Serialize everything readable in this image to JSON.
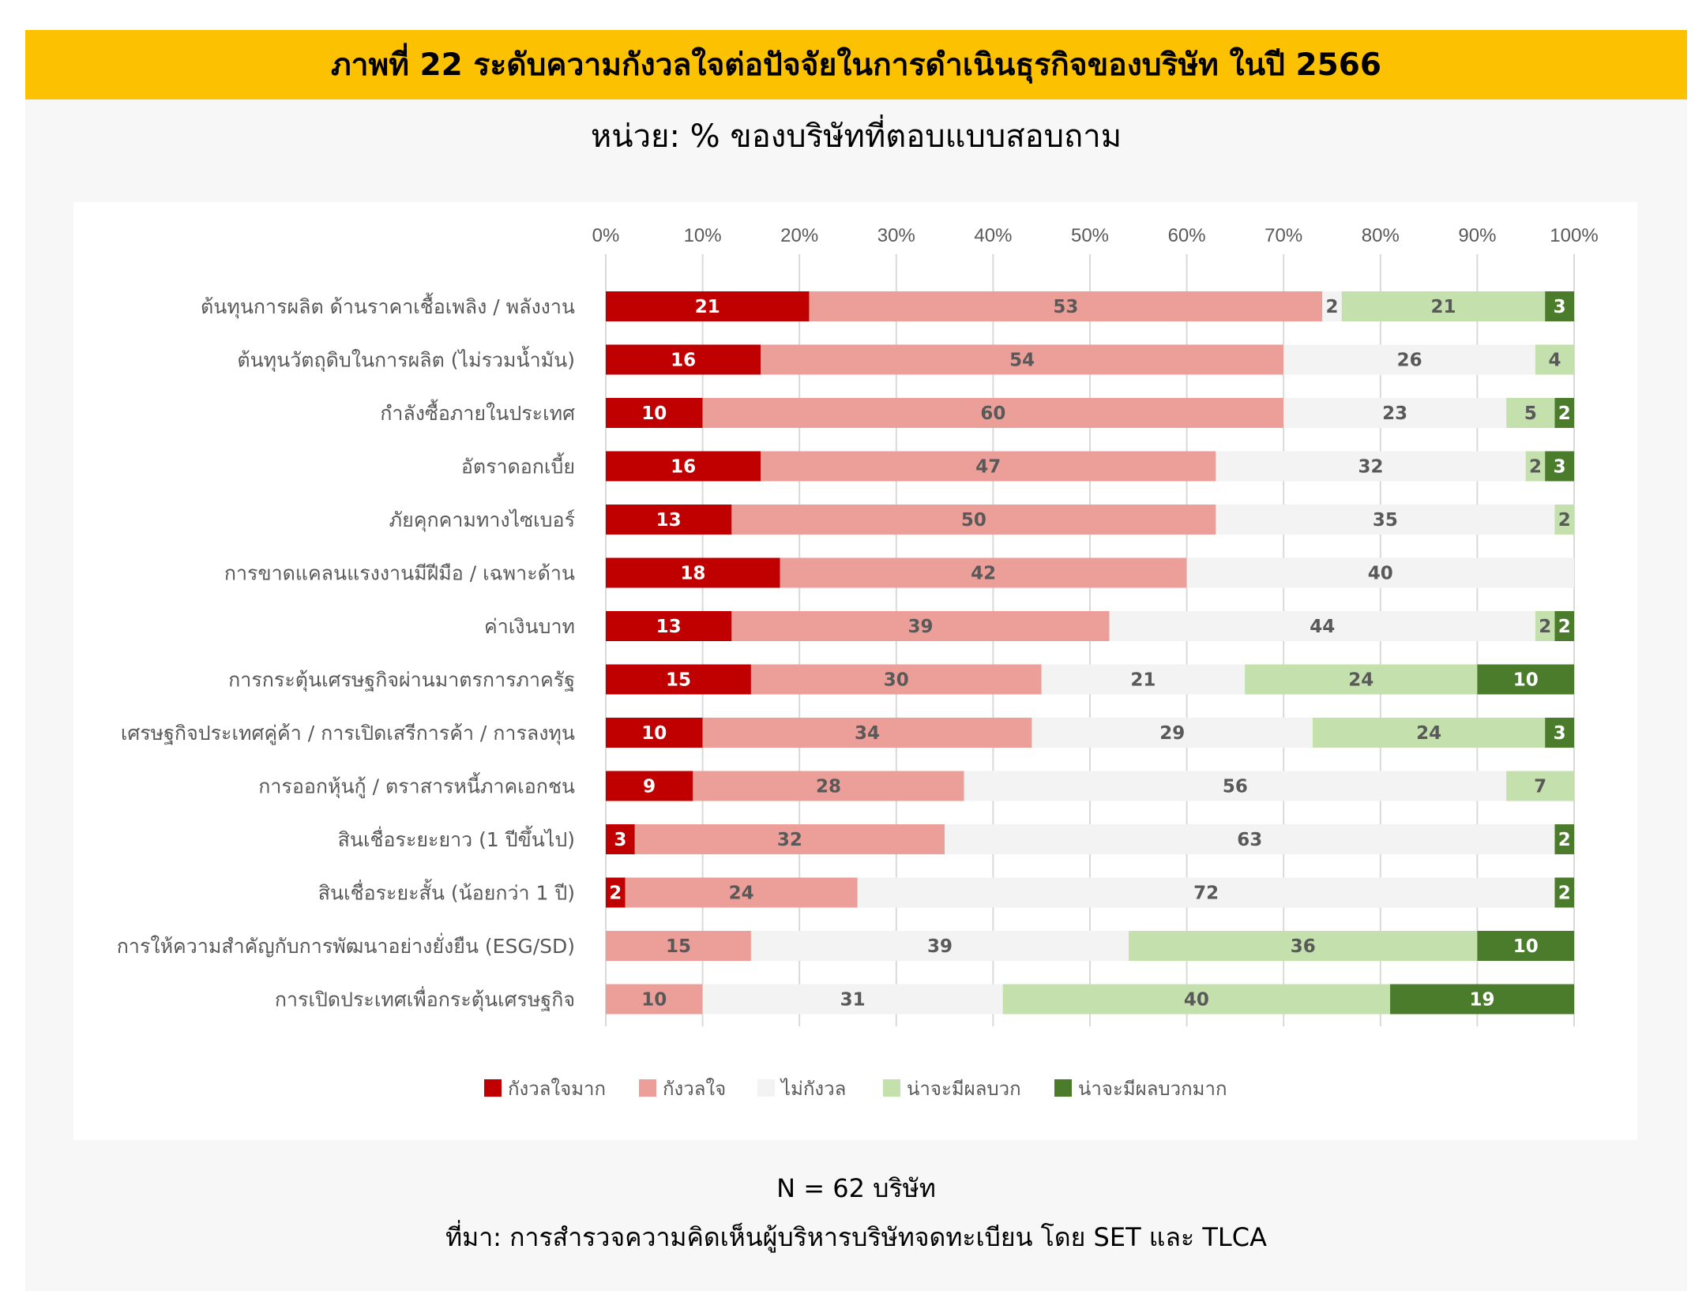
{
  "title": "ภาพที่ 22 ระดับความกังวลใจต่อปัจจัยในการดำเนินธุรกิจของบริษัท ในปี 2566",
  "subtitle": "หน่วย: % ของบริษัทที่ตอบแบบสอบถาม",
  "footer": {
    "n_label": "N = 62 บริษัท",
    "source": "ที่มา: การสำรวจความคิดเห็นผู้บริหารบริษัทจดทะเบียน โดย SET และ TLCA"
  },
  "chart_data": {
    "type": "bar",
    "orientation": "horizontal",
    "stacked": "percent",
    "xlim": [
      0,
      100
    ],
    "x_ticks": [
      "0%",
      "10%",
      "20%",
      "30%",
      "40%",
      "50%",
      "60%",
      "70%",
      "80%",
      "90%",
      "100%"
    ],
    "grid": true,
    "legend_position": "bottom",
    "categories": [
      "ต้นทุนการผลิต ด้านราคาเชื้อเพลิง / พลังงาน",
      "ต้นทุนวัตถุดิบในการผลิต (ไม่รวมน้ำมัน)",
      "กำลังซื้อภายในประเทศ",
      "อัตราดอกเบี้ย",
      "ภัยคุกคามทางไซเบอร์",
      "การขาดแคลนแรงงานมีฝีมือ / เฉพาะด้าน",
      "ค่าเงินบาท",
      "การกระตุ้นเศรษฐกิจผ่านมาตรการภาครัฐ",
      "เศรษฐกิจประเทศคู่ค้า / การเปิดเสรีการค้า / การลงทุน",
      "การออกหุ้นกู้ / ตราสารหนี้ภาคเอกชน",
      "สินเชื่อระยะยาว (1 ปีขึ้นไป)",
      "สินเชื่อระยะสั้น (น้อยกว่า 1 ปี)",
      "การให้ความสำคัญกับการพัฒนาอย่างยั่งยืน (ESG/SD)",
      "การเปิดประเทศเพื่อกระตุ้นเศรษฐกิจ"
    ],
    "series": [
      {
        "name": "กังวลใจมาก",
        "color": "#c00000",
        "label_color": "#ffffff",
        "values": [
          21,
          16,
          10,
          16,
          13,
          18,
          13,
          15,
          10,
          9,
          3,
          2,
          0,
          0
        ]
      },
      {
        "name": "กังวลใจ",
        "color": "#ec9f98",
        "label_color": "#595959",
        "values": [
          53,
          54,
          60,
          47,
          50,
          42,
          39,
          30,
          34,
          28,
          32,
          24,
          15,
          10
        ]
      },
      {
        "name": "ไม่กังวล",
        "color": "#f3f3f3",
        "label_color": "#595959",
        "values": [
          2,
          26,
          23,
          32,
          35,
          40,
          44,
          21,
          29,
          56,
          63,
          72,
          39,
          31
        ]
      },
      {
        "name": "น่าจะมีผลบวก",
        "color": "#c3e0ad",
        "label_color": "#595959",
        "values": [
          21,
          4,
          5,
          2,
          2,
          0,
          2,
          24,
          24,
          7,
          0,
          0,
          36,
          40
        ]
      },
      {
        "name": "น่าจะมีผลบวกมาก",
        "color": "#4a7c2c",
        "label_color": "#ffffff",
        "values": [
          3,
          0,
          2,
          3,
          0,
          0,
          2,
          10,
          3,
          0,
          2,
          2,
          10,
          19
        ]
      }
    ]
  }
}
